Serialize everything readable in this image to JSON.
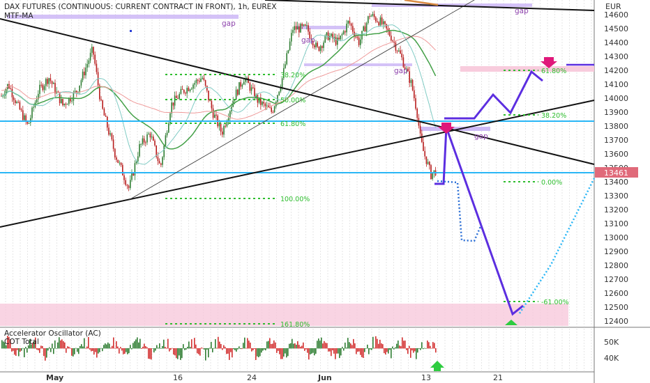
{
  "chart_data": {
    "type": "line",
    "title": "DAX FUTURES (CONTINUOUS: CURRENT CONTRACT IN FRONT), 1h, EUREX",
    "subtitle": "MTF-MA",
    "currency": "EUR",
    "last_price": "13461",
    "y_ticks": [
      14600,
      14500,
      14400,
      14300,
      14200,
      14100,
      14000,
      13900,
      13800,
      13700,
      13600,
      13500,
      13400,
      13300,
      13200,
      13100,
      13000,
      12900,
      12800,
      12700,
      12600,
      12500,
      12400
    ],
    "ylim": [
      12400,
      14650
    ],
    "x_labels": [
      "May",
      "16",
      "24",
      "Jun",
      "13",
      "21"
    ],
    "horizontal_levels": [
      13835,
      13461
    ],
    "gap_labels": [
      "gap",
      "gap",
      "gap",
      "gap",
      "gap"
    ],
    "fib_retracement": [
      {
        "label": "38.20%",
        "value": 14170
      },
      {
        "label": "50.00%",
        "value": 13990
      },
      {
        "label": "61.80%",
        "value": 13820
      },
      {
        "label": "100.00%",
        "value": 13280
      },
      {
        "label": "161.80%",
        "value": 12380
      }
    ],
    "fib_projection": [
      {
        "label": "61.80%",
        "value": 14200
      },
      {
        "label": "38.20%",
        "value": 13880
      },
      {
        "label": "0.00%",
        "value": 13400
      },
      {
        "label": "-61.00%",
        "value": 12540
      }
    ],
    "projection_path_solid": [
      13490,
      13840,
      12430,
      12510
    ],
    "projection_path_target": [
      13860,
      13860,
      14090,
      13900,
      14200
    ],
    "projection_path_dotted": [
      13410,
      12980,
      12430,
      13400
    ],
    "oscillator": {
      "name": "Accelerator Oscillator (AC)",
      "secondary": "COT Total",
      "y_ticks": [
        "50K",
        "40K"
      ]
    },
    "colors": {
      "price_up": "#2e7d32",
      "price_down": "#b71c1c",
      "hline": "#29b6f6",
      "trend": "#111111",
      "projection": "#5c2ee0",
      "fib": "#2dbd2d",
      "zone": "#f7c6d9",
      "gap": "#c9b3f5"
    }
  }
}
